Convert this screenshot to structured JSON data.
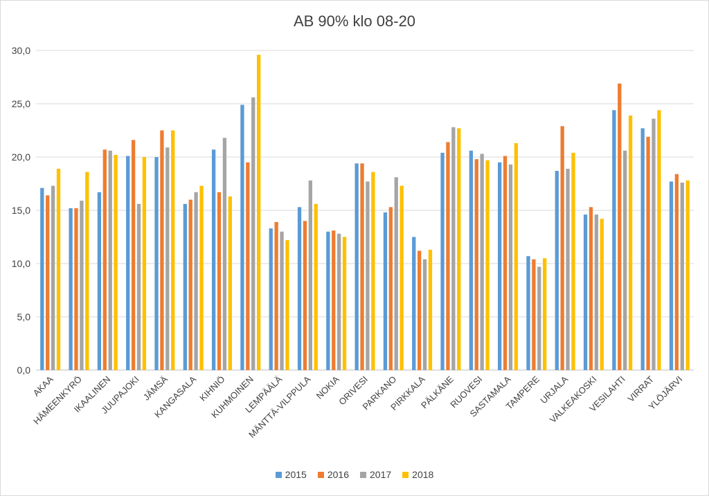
{
  "chart_data": {
    "type": "bar",
    "title": "AB 90% klo 08-20",
    "xlabel": "",
    "ylabel": "",
    "ylim": [
      0,
      30
    ],
    "yticks": [
      "0,0",
      "5,0",
      "10,0",
      "15,0",
      "20,0",
      "25,0",
      "30,0"
    ],
    "grid": true,
    "legend_position": "bottom",
    "categories": [
      "AKAA",
      "HÄMEENKYRÖ",
      "IKAALINEN",
      "JUUPAJOKI",
      "JÄMSÄ",
      "KANGASALA",
      "KIHNIÖ",
      "KUHMOINEN",
      "LEMPÄÄLÄ",
      "MÄNTTÄ-VILPPULA",
      "NOKIA",
      "ORIVESI",
      "PARKANO",
      "PIRKKALA",
      "PÄLKÄNE",
      "RUOVESI",
      "SASTAMALA",
      "TAMPERE",
      "URJALA",
      "VALKEAKOSKI",
      "VESILAHTI",
      "VIRRAT",
      "YLÖJÄRVI"
    ],
    "series": [
      {
        "name": "2015",
        "color": "#5b9bd5",
        "values": [
          17.1,
          15.2,
          16.7,
          20.1,
          20.0,
          15.6,
          20.7,
          24.9,
          13.3,
          15.3,
          13.0,
          19.4,
          14.8,
          12.5,
          20.4,
          20.6,
          19.5,
          10.7,
          18.7,
          14.6,
          24.4,
          22.7,
          17.7
        ]
      },
      {
        "name": "2016",
        "color": "#ed7d31",
        "values": [
          16.4,
          15.2,
          20.7,
          21.6,
          22.5,
          16.0,
          16.7,
          19.5,
          13.9,
          14.0,
          13.1,
          19.4,
          15.3,
          11.2,
          21.4,
          19.8,
          20.1,
          10.4,
          22.9,
          15.3,
          26.9,
          21.9,
          18.4
        ]
      },
      {
        "name": "2017",
        "color": "#a5a5a5",
        "values": [
          17.3,
          15.9,
          20.6,
          15.6,
          20.9,
          16.7,
          21.8,
          25.6,
          13.0,
          17.8,
          12.8,
          17.7,
          18.1,
          10.4,
          22.8,
          20.3,
          19.3,
          9.7,
          18.9,
          14.6,
          20.6,
          23.6,
          17.6
        ]
      },
      {
        "name": "2018",
        "color": "#ffc000",
        "values": [
          18.9,
          18.6,
          20.2,
          20.0,
          22.5,
          17.3,
          16.3,
          29.6,
          12.2,
          15.6,
          12.5,
          18.6,
          17.3,
          11.3,
          22.7,
          19.7,
          21.3,
          10.5,
          20.4,
          14.2,
          23.9,
          24.4,
          17.8
        ]
      }
    ]
  }
}
